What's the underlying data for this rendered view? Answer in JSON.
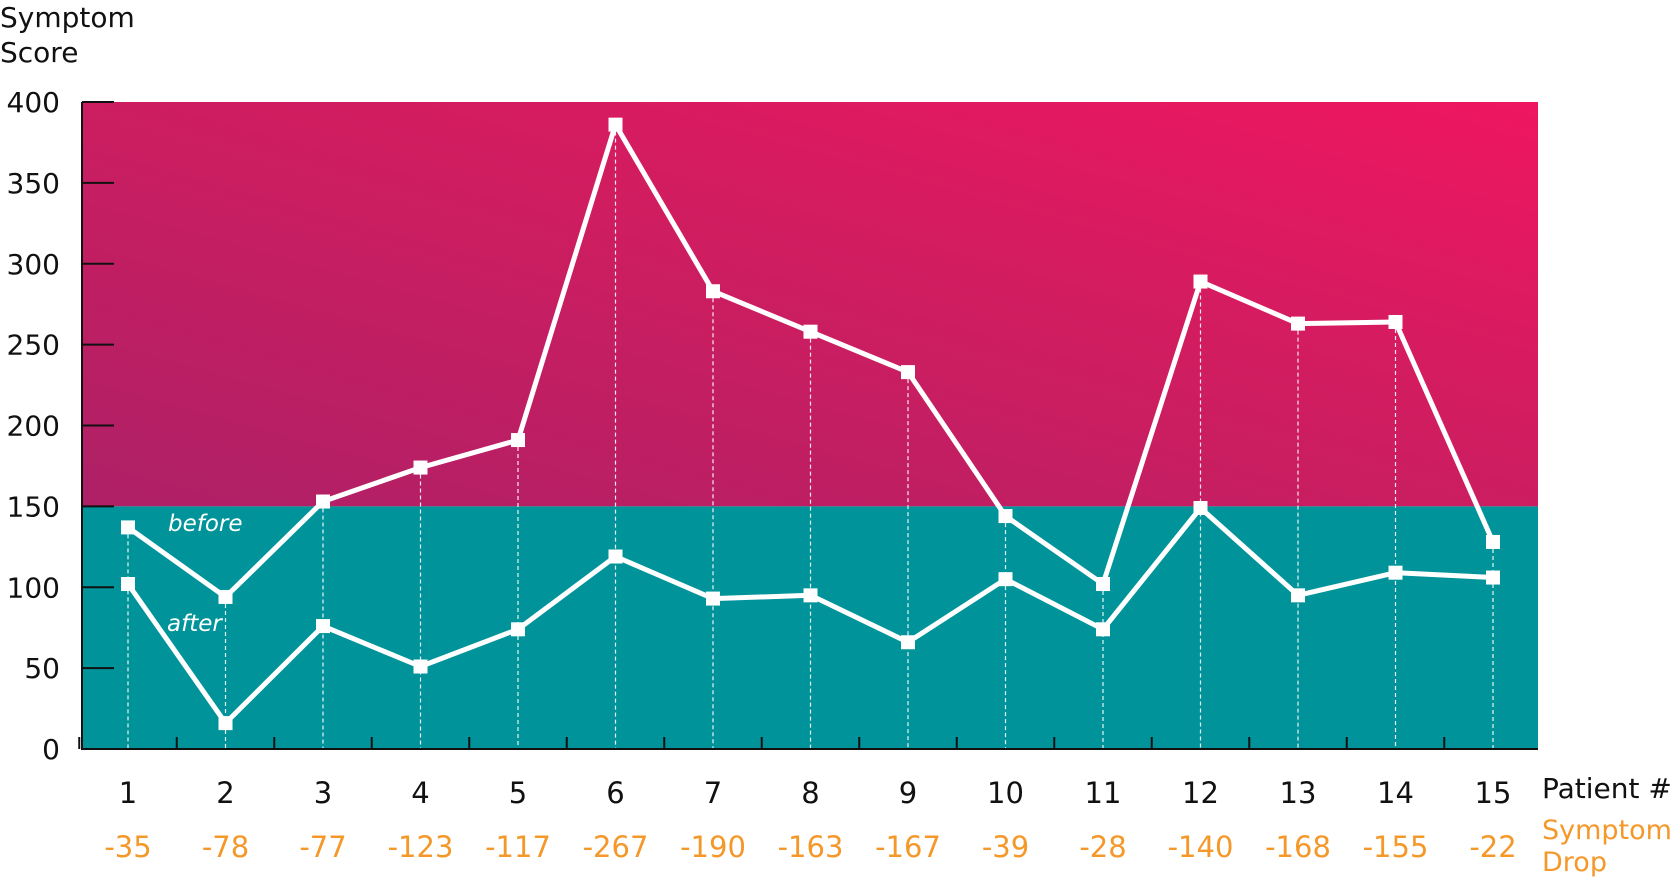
{
  "chart_data": {
    "type": "line",
    "ylabel": "Symptom Score",
    "xlabel": "Patient #",
    "drop_label": "Symptom Drop",
    "ylim": [
      0,
      400
    ],
    "yticks": [
      0,
      50,
      100,
      150,
      200,
      250,
      300,
      350,
      400
    ],
    "threshold": 150,
    "x": [
      "1",
      "2",
      "3",
      "4",
      "5",
      "6",
      "7",
      "8",
      "9",
      "10",
      "11",
      "12",
      "13",
      "14",
      "15"
    ],
    "series": [
      {
        "name": "before",
        "values": [
          137,
          94,
          153,
          174,
          191,
          386,
          283,
          258,
          233,
          144,
          102,
          289,
          263,
          264,
          128
        ]
      },
      {
        "name": "after",
        "values": [
          102,
          16,
          76,
          51,
          74,
          119,
          93,
          95,
          66,
          105,
          74,
          149,
          95,
          109,
          106
        ]
      }
    ],
    "symptom_drop": [
      "-35",
      "-78",
      "-77",
      "-123",
      "-117",
      "-267",
      "-190",
      "-163",
      "-167",
      "-39",
      "-28",
      "-140",
      "-168",
      "-155",
      "-22"
    ],
    "colors": {
      "above": "#cf1d60",
      "above_left": "#ae2066",
      "above_right": "#ee1660",
      "below": "#00949a",
      "line": "#ffffff",
      "drop_text": "#f5982a"
    }
  }
}
